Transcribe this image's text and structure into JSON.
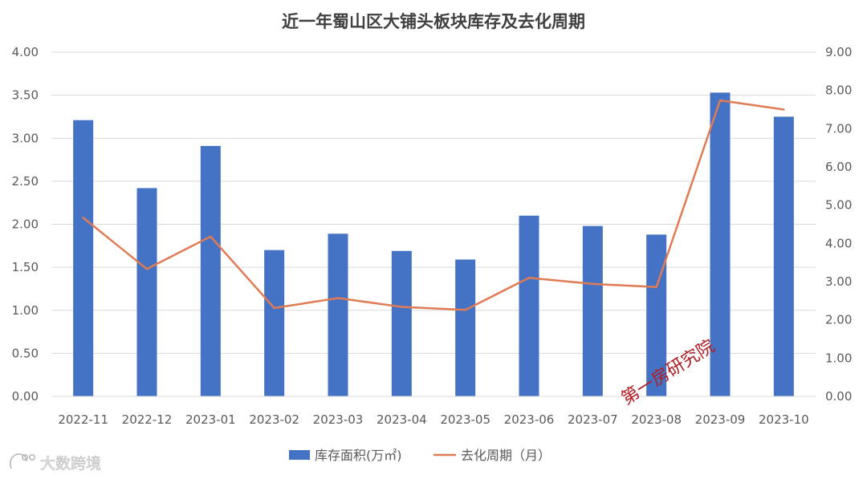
{
  "chart_data": {
    "type": "bar",
    "title": "近一年蜀山区大铺头板块库存及去化周期",
    "categories": [
      "2022-11",
      "2022-12",
      "2023-01",
      "2023-02",
      "2023-03",
      "2023-04",
      "2023-05",
      "2023-06",
      "2023-07",
      "2023-08",
      "2023-09",
      "2023-10"
    ],
    "series": [
      {
        "name": "库存面积(万㎡)",
        "type": "bar",
        "axis": "left",
        "color": "#4472c4",
        "values": [
          3.21,
          2.42,
          2.91,
          1.7,
          1.89,
          1.69,
          1.59,
          2.1,
          1.98,
          1.88,
          3.53,
          3.25
        ]
      },
      {
        "name": "去化周期（月）",
        "type": "line",
        "axis": "right",
        "color": "#e07b54",
        "values": [
          4.67,
          3.33,
          4.18,
          2.31,
          2.57,
          2.34,
          2.26,
          3.1,
          2.94,
          2.86,
          7.74,
          7.5
        ]
      }
    ],
    "y_left": {
      "lim": [
        0,
        4
      ],
      "ticks": [
        "0.00",
        "0.50",
        "1.00",
        "1.50",
        "2.00",
        "2.50",
        "3.00",
        "3.50",
        "4.00"
      ]
    },
    "y_right": {
      "lim": [
        0,
        9
      ],
      "ticks": [
        "0.00",
        "1.00",
        "2.00",
        "3.00",
        "4.00",
        "5.00",
        "6.00",
        "7.00",
        "8.00",
        "9.00"
      ]
    },
    "grid": true,
    "legend_position": "bottom"
  },
  "watermarks": {
    "stamp": "第一房研究院",
    "brand": "大数跨境"
  }
}
